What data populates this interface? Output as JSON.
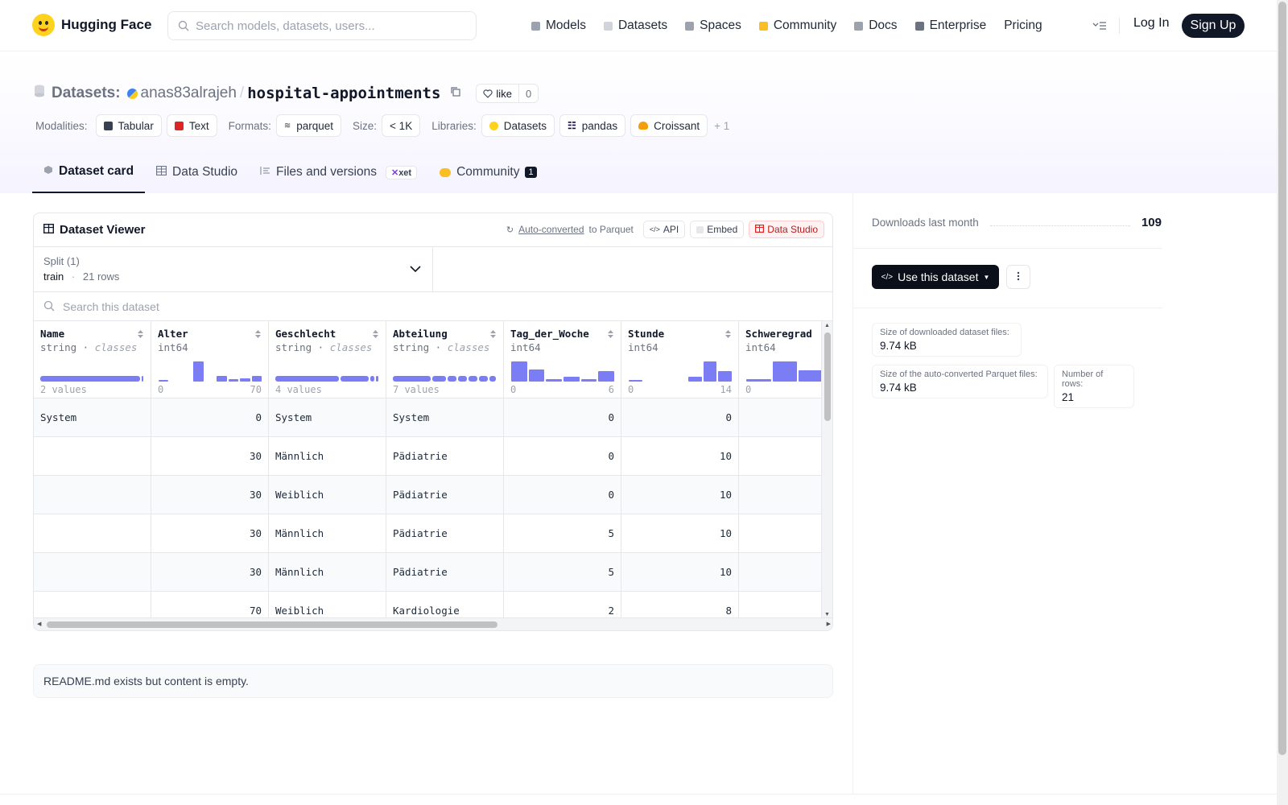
{
  "brand": {
    "name": "Hugging Face"
  },
  "search": {
    "placeholder": "Search models, datasets, users..."
  },
  "nav": {
    "items": [
      {
        "label": "Models",
        "icon": "models-icon",
        "color": "#9ca3af"
      },
      {
        "label": "Datasets",
        "icon": "datasets-icon",
        "color": "#d1d5db"
      },
      {
        "label": "Spaces",
        "icon": "spaces-icon",
        "color": "#9ca3af"
      },
      {
        "label": "Community",
        "icon": "community-icon",
        "color": "#fbbf24"
      },
      {
        "label": "Docs",
        "icon": "docs-icon",
        "color": "#9ca3af"
      },
      {
        "label": "Enterprise",
        "icon": "enterprise-icon",
        "color": "#6b7280"
      },
      {
        "label": "Pricing",
        "icon": "",
        "color": ""
      }
    ],
    "login": "Log In",
    "signup": "Sign Up"
  },
  "repo": {
    "type_label": "Datasets:",
    "owner": "anas83alrajeh",
    "separator": "/",
    "name": "hospital-appointments",
    "like_label": "like",
    "like_count": "0"
  },
  "tags": {
    "modalities_label": "Modalities:",
    "modalities": [
      "Tabular",
      "Text"
    ],
    "formats_label": "Formats:",
    "formats": [
      "parquet"
    ],
    "size_label": "Size:",
    "size": "< 1K",
    "libraries_label": "Libraries:",
    "libraries": [
      "Datasets",
      "pandas",
      "Croissant"
    ],
    "more": "+ 1"
  },
  "tabs": [
    {
      "label": "Dataset card",
      "active": true
    },
    {
      "label": "Data Studio",
      "active": false
    },
    {
      "label": "Files and versions",
      "active": false,
      "badge": "xet"
    },
    {
      "label": "Community",
      "active": false,
      "badge": "1"
    }
  ],
  "viewer": {
    "title": "Dataset Viewer",
    "auto_converted": "Auto-converted",
    "to_parquet": "to Parquet",
    "api": "API",
    "embed": "Embed",
    "data_studio": "Data Studio",
    "split_label": "Split (1)",
    "split_name": "train",
    "split_dot": "·",
    "split_rows": "21 rows",
    "search_placeholder": "Search this dataset",
    "columns": [
      {
        "name": "Name",
        "type": "string",
        "kind": "classes",
        "foot_left": "2 values",
        "foot_right": "",
        "hist": "classes",
        "classes": [
          0.97,
          0.03
        ]
      },
      {
        "name": "Alter",
        "type": "int64",
        "kind": "",
        "foot_left": "0",
        "foot_right": "70",
        "hist": "bars",
        "bars": [
          0.08,
          0,
          0,
          0.9,
          0,
          0.25,
          0.1,
          0.15,
          0.25
        ]
      },
      {
        "name": "Geschlecht",
        "type": "string",
        "kind": "classes",
        "foot_left": "4 values",
        "foot_right": "",
        "hist": "classes",
        "classes": [
          0.62,
          0.29,
          0.05,
          0.04
        ]
      },
      {
        "name": "Abteilung",
        "type": "string",
        "kind": "classes",
        "foot_left": "7 values",
        "foot_right": "",
        "hist": "classes",
        "classes": [
          0.38,
          0.14,
          0.1,
          0.1,
          0.1,
          0.1,
          0.08
        ]
      },
      {
        "name": "Tag_der_Woche",
        "type": "int64",
        "kind": "",
        "foot_left": "0",
        "foot_right": "6",
        "hist": "bars",
        "bars": [
          0.9,
          0.55,
          0.12,
          0.2,
          0.12,
          0.45
        ]
      },
      {
        "name": "Stunde",
        "type": "int64",
        "kind": "",
        "foot_left": "0",
        "foot_right": "14",
        "hist": "bars",
        "bars": [
          0.08,
          0,
          0,
          0,
          0.22,
          0.9,
          0.45
        ]
      },
      {
        "name": "Schweregrad",
        "type": "int64",
        "kind": "",
        "foot_left": "0",
        "foot_right": "",
        "hist": "bars",
        "bars": [
          0.1,
          0.9,
          0.5,
          0.4
        ]
      }
    ],
    "rows": [
      [
        "System",
        "0",
        "System",
        "System",
        "0",
        "0",
        ""
      ],
      [
        "",
        "30",
        "Männlich",
        "Pädiatrie",
        "0",
        "10",
        ""
      ],
      [
        "",
        "30",
        "Weiblich",
        "Pädiatrie",
        "0",
        "10",
        ""
      ],
      [
        "",
        "30",
        "Männlich",
        "Pädiatrie",
        "5",
        "10",
        ""
      ],
      [
        "",
        "30",
        "Männlich",
        "Pädiatrie",
        "5",
        "10",
        ""
      ],
      [
        "",
        "70",
        "Weiblich",
        "Kardiologie",
        "2",
        "8",
        ""
      ]
    ]
  },
  "readme": {
    "text": "README.md exists but content is empty."
  },
  "sidebar": {
    "downloads_label": "Downloads last month",
    "downloads": "109",
    "use_button": "Use this dataset",
    "stats": [
      {
        "label": "Size of downloaded dataset files:",
        "value": "9.74 kB"
      },
      {
        "label": "Size of the auto-converted Parquet files:",
        "value": "9.74 kB"
      },
      {
        "label": "Number of rows:",
        "value": "21"
      }
    ]
  },
  "colors": {
    "accent": "#6366f1",
    "primary_dark": "#111827",
    "red": "#b91c1c"
  }
}
